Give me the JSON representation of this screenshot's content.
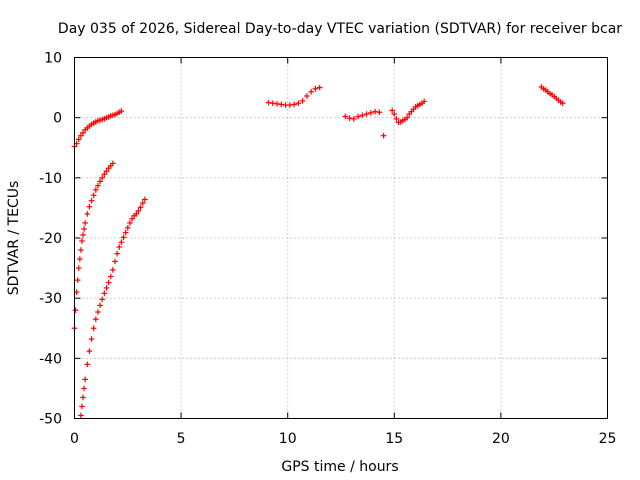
{
  "chart_data": {
    "type": "scatter",
    "title": "Day 035 of 2026, Sidereal Day-to-day VTEC variation (SDTVAR) for receiver bcar",
    "xlabel": "GPS time / hours",
    "ylabel": "SDTVAR / TECUs",
    "xlim": [
      0,
      25
    ],
    "ylim": [
      -50,
      10
    ],
    "xticks": [
      "0",
      "5",
      "10",
      "15",
      "20",
      "25"
    ],
    "yticks": [
      "-50",
      "-40",
      "-30",
      "-20",
      "-10",
      "0",
      "10"
    ],
    "grid": true,
    "marker": "+",
    "color": "#ff0000",
    "series": [
      {
        "x": [
          0.0,
          0.1,
          0.2,
          0.3,
          0.4,
          0.5,
          0.6,
          0.7,
          0.8,
          0.9,
          1.0,
          1.1,
          1.2,
          1.3,
          1.4,
          1.5,
          1.6,
          1.7,
          1.8,
          1.9,
          2.0,
          2.1,
          2.2
        ],
        "y": [
          -4.8,
          -4.3,
          -3.6,
          -3.0,
          -2.5,
          -2.0,
          -1.7,
          -1.4,
          -1.1,
          -0.9,
          -0.7,
          -0.5,
          -0.4,
          -0.3,
          -0.2,
          0.0,
          0.1,
          0.3,
          0.4,
          0.5,
          0.7,
          0.9,
          1.1
        ]
      },
      {
        "x": [
          0.0,
          0.05,
          0.1,
          0.15,
          0.2,
          0.25,
          0.3,
          0.35,
          0.4,
          0.45,
          0.5,
          0.6,
          0.7,
          0.8,
          0.9,
          1.0,
          1.1,
          1.2,
          1.3,
          1.4,
          1.5,
          1.6,
          1.7,
          1.8
        ],
        "y": [
          -35.0,
          -32.0,
          -29.0,
          -27.0,
          -25.0,
          -23.5,
          -22.0,
          -20.5,
          -19.5,
          -18.5,
          -17.5,
          -16.0,
          -14.8,
          -13.8,
          -12.9,
          -12.0,
          -11.3,
          -10.6,
          -10.0,
          -9.4,
          -8.9,
          -8.4,
          -8.0,
          -7.6
        ]
      },
      {
        "x": [
          0.3,
          0.35,
          0.4,
          0.45,
          0.5,
          0.6,
          0.7,
          0.8,
          0.9,
          1.0,
          1.1,
          1.2,
          1.3,
          1.4,
          1.5,
          1.6,
          1.7,
          1.8,
          1.9,
          2.0,
          2.1,
          2.2,
          2.3,
          2.4,
          2.5,
          2.6,
          2.7,
          2.8,
          2.9,
          3.0,
          3.1,
          3.2,
          3.3
        ],
        "y": [
          -49.5,
          -48.0,
          -46.5,
          -45.0,
          -43.5,
          -41.0,
          -38.8,
          -36.8,
          -35.0,
          -33.5,
          -32.3,
          -31.2,
          -30.2,
          -29.2,
          -28.3,
          -27.4,
          -26.4,
          -25.3,
          -23.9,
          -22.6,
          -21.5,
          -20.7,
          -19.9,
          -19.1,
          -18.3,
          -17.5,
          -16.8,
          -16.3,
          -16.0,
          -15.5,
          -14.9,
          -14.2,
          -13.6
        ]
      },
      {
        "x": [
          9.1,
          9.3,
          9.5,
          9.7,
          9.9,
          10.1,
          10.3,
          10.5,
          10.7,
          10.9,
          11.1,
          11.3,
          11.5
        ],
        "y": [
          2.5,
          2.4,
          2.3,
          2.2,
          2.1,
          2.1,
          2.2,
          2.4,
          2.8,
          3.6,
          4.3,
          4.8,
          5.0
        ]
      },
      {
        "x": [
          12.7,
          12.9,
          13.1,
          13.3,
          13.5,
          13.7,
          13.9,
          14.1,
          14.3,
          14.5
        ],
        "y": [
          0.2,
          -0.1,
          -0.2,
          0.2,
          0.4,
          0.6,
          0.8,
          1.0,
          0.9,
          -3.0
        ]
      },
      {
        "x": [
          14.9,
          15.0,
          15.1,
          15.2,
          15.3,
          15.4,
          15.5,
          15.6,
          15.7,
          15.8,
          15.9,
          16.0,
          16.1,
          16.2,
          16.3,
          16.4
        ],
        "y": [
          1.2,
          0.6,
          -0.2,
          -0.8,
          -0.7,
          -0.5,
          -0.3,
          0.0,
          0.6,
          1.0,
          1.4,
          1.8,
          2.0,
          2.2,
          2.4,
          2.7
        ]
      },
      {
        "x": [
          21.9,
          22.0,
          22.1,
          22.2,
          22.3,
          22.4,
          22.5,
          22.6,
          22.7,
          22.8,
          22.9
        ],
        "y": [
          5.1,
          4.8,
          4.6,
          4.3,
          4.0,
          3.8,
          3.5,
          3.2,
          2.9,
          2.6,
          2.4
        ]
      }
    ]
  }
}
